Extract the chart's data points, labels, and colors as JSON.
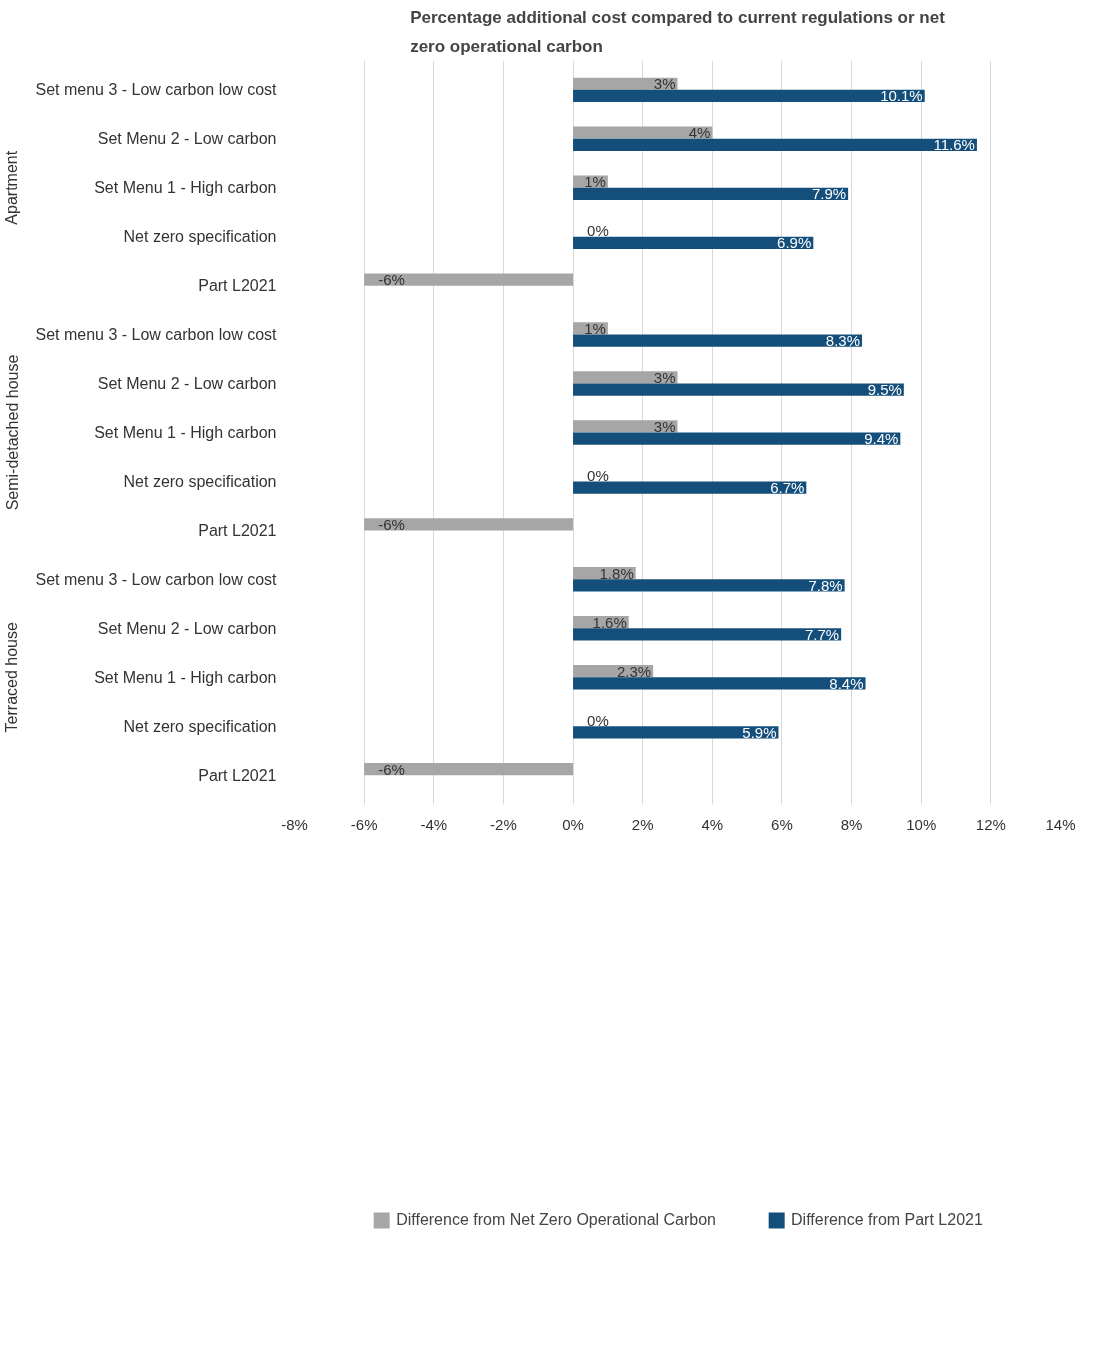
{
  "chart_data": {
    "type": "bar",
    "orientation": "horizontal",
    "title": "Percentage additional cost compared to current regulations or net zero operational carbon",
    "categories": [
      "Set menu 3 - Low carbon low cost",
      "Set Menu 2 - Low carbon",
      "Set Menu 1 - High carbon",
      "Net zero specification",
      "Part L2021",
      "Set menu 3 - Low carbon low cost",
      "Set Menu 2 - Low carbon",
      "Set Menu 1 - High carbon",
      "Net zero specification",
      "Part L2021",
      "Set menu 3 - Low carbon low cost",
      "Set Menu 2 - Low carbon",
      "Set Menu 1 - High carbon",
      "Net zero specification",
      "Part L2021"
    ],
    "series": [
      {
        "name": "Difference from Net Zero Operational Carbon",
        "color": "#a6a6a6",
        "values": [
          3,
          4,
          1,
          0,
          -6,
          1,
          3,
          3,
          0,
          -6,
          1.8,
          1.6,
          2.3,
          0,
          -6
        ],
        "value_labels": [
          "3%",
          "4%",
          "1%",
          "0%",
          "-6%",
          "1%",
          "3%",
          "3%",
          "0%",
          "-6%",
          "1.8%",
          "1.6%",
          "2.3%",
          "0%",
          "-6%"
        ]
      },
      {
        "name": "Difference from Part L2021",
        "color": "#134f7a",
        "values": [
          10.1,
          11.6,
          7.9,
          6.9,
          null,
          8.3,
          9.5,
          9.4,
          6.7,
          null,
          7.8,
          7.7,
          8.4,
          5.9,
          null
        ],
        "value_labels": [
          "10.1%",
          "11.6%",
          "7.9%",
          "6.9%",
          null,
          "8.3%",
          "9.5%",
          "9.4%",
          "6.7%",
          null,
          "7.8%",
          "7.7%",
          "8.4%",
          "5.9%",
          null
        ]
      }
    ],
    "annotations": [
      "Apartment",
      "Semi-detached house",
      "Terraced house"
    ],
    "xlim": [
      -8,
      14
    ],
    "xticks": [
      {
        "value": -8,
        "label": "-8%"
      },
      {
        "value": -6,
        "label": "-6%"
      },
      {
        "value": -4,
        "label": "-4%"
      },
      {
        "value": -2,
        "label": "-2%"
      },
      {
        "value": 0,
        "label": "0%"
      },
      {
        "value": 2,
        "label": "2%"
      },
      {
        "value": 4,
        "label": "4%"
      },
      {
        "value": 6,
        "label": "6%"
      },
      {
        "value": 8,
        "label": "8%"
      },
      {
        "value": 10,
        "label": "10%"
      },
      {
        "value": 12,
        "label": "12%"
      },
      {
        "value": 14,
        "label": "14%"
      }
    ],
    "grid": "x",
    "legend": "bottom"
  }
}
